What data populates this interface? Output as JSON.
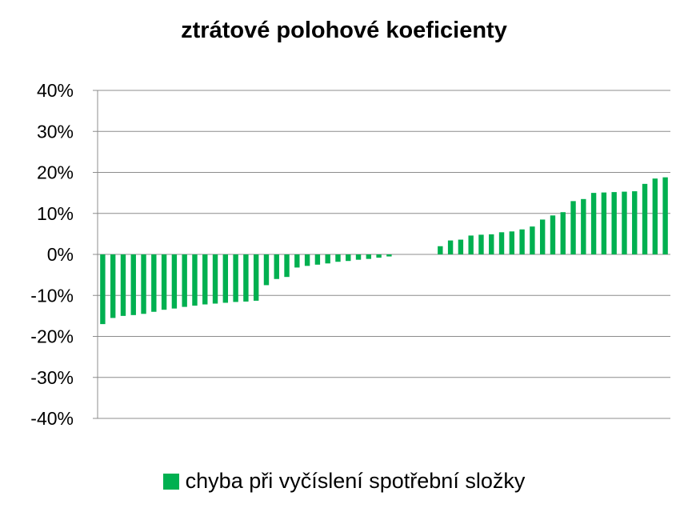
{
  "chart_data": {
    "type": "bar",
    "title": "ztrátové polohové koeficienty",
    "xlabel": "",
    "ylabel": "",
    "ylim": [
      -40,
      40
    ],
    "yticks": [
      40,
      30,
      20,
      10,
      0,
      -10,
      -20,
      -30,
      -40
    ],
    "ytick_labels": [
      "40%",
      "30%",
      "20%",
      "10%",
      "0%",
      "-10%",
      "-20%",
      "-30%",
      "-40%"
    ],
    "grid": true,
    "legend_position": "bottom",
    "series": [
      {
        "name": "chyba při vyčíslení spotřební složky",
        "color": "#00b050",
        "values": [
          -17.0,
          -15.5,
          -15.0,
          -14.8,
          -14.5,
          -14.0,
          -13.5,
          -13.2,
          -12.8,
          -12.5,
          -12.2,
          -12.0,
          -11.8,
          -11.6,
          -11.5,
          -11.3,
          -7.5,
          -6.0,
          -5.5,
          -3.2,
          -2.8,
          -2.5,
          -2.2,
          -1.8,
          -1.6,
          -1.3,
          -1.1,
          -0.8,
          -0.5,
          0,
          0,
          0,
          0,
          2.0,
          3.4,
          3.6,
          4.6,
          4.8,
          4.9,
          5.4,
          5.6,
          6.1,
          6.8,
          8.5,
          9.5,
          10.3,
          13.0,
          13.5,
          15.0,
          15.1,
          15.2,
          15.3,
          15.4,
          17.2,
          18.5,
          18.8
        ]
      }
    ]
  }
}
